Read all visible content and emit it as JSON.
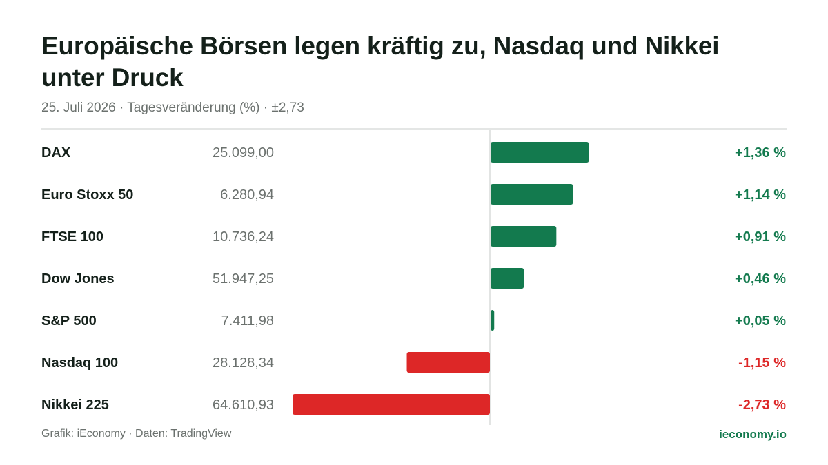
{
  "title": "Europäische Börsen legen kräftig zu, Nasdaq und Nikkei unter Druck",
  "subtitle": "25. Juli 2026 · Tagesveränderung (%) · ±2,73",
  "footer": {
    "source": "Grafik: iEconomy · Daten: TradingView",
    "brand": "ieconomy.io"
  },
  "colors": {
    "positive": "#137a4e",
    "negative": "#dd2727",
    "axis": "#d9dcda"
  },
  "chart_data": {
    "type": "bar",
    "orientation": "horizontal",
    "title": "Europäische Börsen legen kräftig zu, Nasdaq und Nikkei unter Druck",
    "subtitle": "25. Juli 2026 · Tagesveränderung (%) · ±2,73",
    "xlim": [
      -2.73,
      2.73
    ],
    "unit": "%",
    "categories": [
      "DAX",
      "Euro Stoxx 50",
      "FTSE 100",
      "Dow Jones",
      "S&P 500",
      "Nasdaq 100",
      "Nikkei 225"
    ],
    "levels": [
      "25.099,00",
      "6.280,94",
      "10.736,24",
      "51.947,25",
      "7.411,98",
      "28.128,34",
      "64.610,93"
    ],
    "values": [
      1.36,
      1.14,
      0.91,
      0.46,
      0.05,
      -1.15,
      -2.73
    ],
    "value_labels": [
      "+1,36 %",
      "+1,14 %",
      "+0,91 %",
      "+0,46 %",
      "+0,05 %",
      "-1,15 %",
      "-2,73 %"
    ]
  }
}
